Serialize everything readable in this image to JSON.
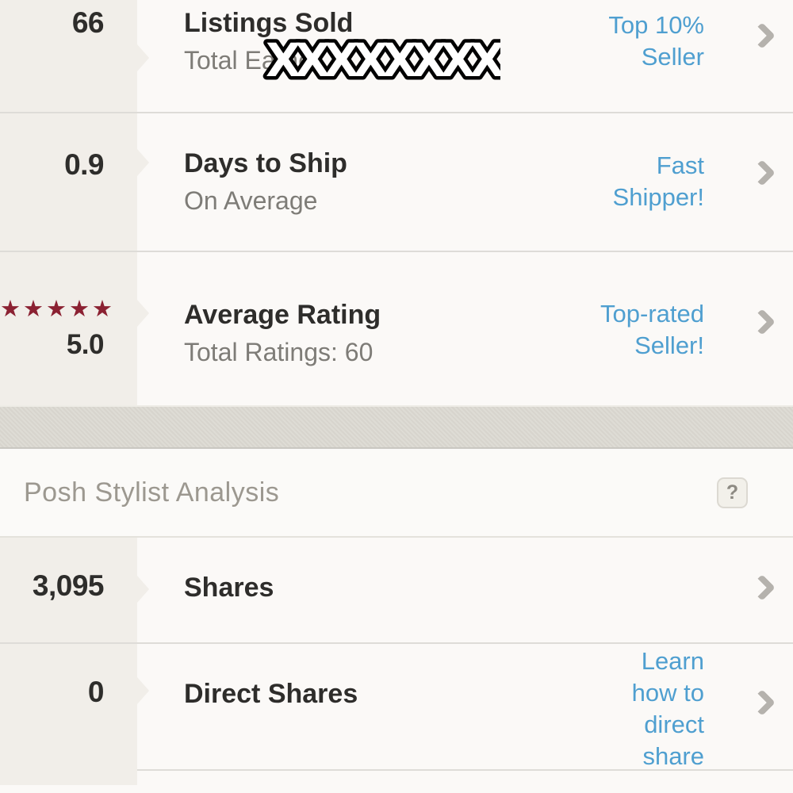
{
  "colors": {
    "accent_blue": "#4f9fd0",
    "star_maroon": "#8b2132",
    "left_column_bg": "#f1eee9",
    "content_bg": "#fbf9f7",
    "divider_band": "#dcd9d2",
    "header_text": "#9c9890"
  },
  "stats_rows": [
    {
      "value": "66",
      "title": "Listings Sold",
      "subtitle": "Total Earne",
      "redaction": "XXXXXXXX",
      "badge_lines": [
        "Top 10%",
        "Seller"
      ]
    },
    {
      "value": "0.9",
      "title": "Days to Ship",
      "subtitle": "On Average",
      "badge_lines": [
        "Fast",
        "Shipper!"
      ]
    },
    {
      "stars": "★★★★★",
      "value": "5.0",
      "title": "Average Rating",
      "subtitle": "Total Ratings: 60",
      "badge_lines": [
        "Top-rated",
        "Seller!"
      ]
    }
  ],
  "section_header": {
    "title": "Posh Stylist Analysis",
    "help_label": "?"
  },
  "analysis_rows": [
    {
      "value": "3,095",
      "title": "Shares"
    },
    {
      "value": "0",
      "title": "Direct Shares",
      "badge_lines": [
        "Learn",
        "how to",
        "direct",
        "share"
      ]
    }
  ]
}
